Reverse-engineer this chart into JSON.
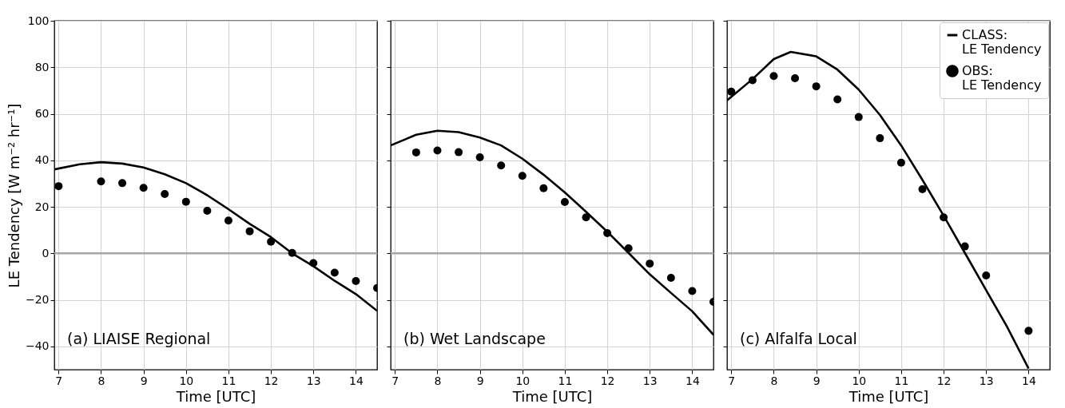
{
  "chart_data": [
    {
      "type": "line",
      "xlabel": "Time [UTC]",
      "ylabel": "LE Tendency [W m⁻² hr⁻¹]",
      "xlim": [
        6.9,
        14.5
      ],
      "ylim": [
        -50,
        100
      ],
      "xticks": [
        7,
        8,
        9,
        10,
        11,
        12,
        13,
        14
      ],
      "yticks": [
        -40,
        -20,
        0,
        20,
        40,
        60,
        80,
        100
      ],
      "grid": true,
      "annotations": [
        "(a) LIAISE Regional"
      ],
      "ref_lines": [
        {
          "axis": "y",
          "value": 0,
          "color": "#a6a6a6"
        }
      ],
      "series": [
        {
          "color": "#000000",
          "x": [
            6.9,
            7.5,
            8,
            8.5,
            9,
            9.5,
            10,
            10.5,
            11,
            11.5,
            12,
            12.5,
            13,
            13.5,
            14,
            14.5
          ],
          "values": [
            36.1,
            38.3,
            39.2,
            38.6,
            36.9,
            34.0,
            30.2,
            25.0,
            19.0,
            12.7,
            7.0,
            0.0,
            -5.5,
            -11.8,
            -17.5,
            -24.7
          ]
        },
        {
          "type": "scatter",
          "color": "#000000",
          "x": [
            7,
            8,
            8.5,
            9,
            9.5,
            10,
            10.5,
            11,
            11.5,
            12,
            12.5,
            13,
            13.5,
            14,
            14.5
          ],
          "values": [
            28.9,
            30.9,
            30.2,
            28.2,
            25.5,
            22.2,
            18.3,
            14.1,
            9.5,
            5.0,
            0.2,
            -4.2,
            -8.3,
            -11.9,
            -14.9
          ]
        }
      ]
    },
    {
      "type": "line",
      "xlabel": "Time [UTC]",
      "xlim": [
        6.9,
        14.5
      ],
      "ylim": [
        -50,
        100
      ],
      "xticks": [
        7,
        8,
        9,
        10,
        11,
        12,
        13,
        14
      ],
      "yticks": [
        -40,
        -20,
        0,
        20,
        40,
        60,
        80,
        100
      ],
      "grid": true,
      "tick_labels": "x",
      "annotations": [
        "(b) Wet Landscape"
      ],
      "ref_lines": [
        {
          "axis": "y",
          "value": 0,
          "color": "#a6a6a6"
        }
      ],
      "series": [
        {
          "color": "#000000",
          "x": [
            6.9,
            7.5,
            8,
            8.5,
            9,
            9.5,
            10,
            10.5,
            11,
            11.5,
            12,
            12.5,
            13,
            13.5,
            14,
            14.5
          ],
          "values": [
            46.4,
            51.0,
            52.7,
            52.1,
            49.8,
            46.4,
            40.7,
            33.8,
            26.2,
            17.9,
            9.3,
            0.2,
            -9.0,
            -17.0,
            -24.9,
            -35.0
          ]
        },
        {
          "type": "scatter",
          "color": "#000000",
          "x": [
            7.5,
            8,
            8.5,
            9,
            9.5,
            10,
            10.5,
            11,
            11.5,
            12,
            12.5,
            13,
            13.5,
            14,
            14.5
          ],
          "values": [
            43.4,
            44.2,
            43.5,
            41.3,
            37.8,
            33.3,
            28.0,
            22.1,
            15.5,
            8.7,
            2.2,
            -4.4,
            -10.5,
            -16.2,
            -20.8
          ]
        }
      ]
    },
    {
      "type": "line",
      "xlabel": "Time [UTC]",
      "xlim": [
        6.9,
        14.5
      ],
      "ylim": [
        -50,
        100
      ],
      "xticks": [
        7,
        8,
        9,
        10,
        11,
        12,
        13,
        14
      ],
      "yticks": [
        -40,
        -20,
        0,
        20,
        40,
        60,
        80,
        100
      ],
      "grid": true,
      "tick_labels": "x",
      "legend": "top right",
      "annotations": [
        "(c) Alfalfa Local"
      ],
      "ref_lines": [
        {
          "axis": "y",
          "value": 0,
          "color": "#a6a6a6"
        }
      ],
      "series": [
        {
          "name": "CLASS:\nLE Tendency",
          "color": "#000000",
          "x": [
            6.9,
            7.5,
            8,
            8.4,
            9,
            9.5,
            10,
            10.5,
            11,
            11.5,
            12,
            12.5,
            13,
            13.5,
            14
          ],
          "values": [
            65.8,
            74.9,
            83.5,
            86.6,
            84.7,
            79.0,
            70.4,
            59.5,
            46.4,
            31.6,
            16.2,
            0.2,
            -15.8,
            -31.8,
            -49.5
          ]
        },
        {
          "type": "scatter",
          "name": "OBS:\nLE Tendency",
          "color": "#000000",
          "x": [
            7,
            7.5,
            8,
            8.5,
            9,
            9.5,
            10,
            10.5,
            11,
            11.5,
            12,
            12.5,
            13,
            14
          ],
          "values": [
            69.5,
            74.4,
            76.2,
            75.3,
            71.8,
            66.2,
            58.6,
            49.5,
            39.0,
            27.6,
            15.5,
            3.0,
            -9.5,
            -33.3
          ]
        }
      ]
    }
  ]
}
